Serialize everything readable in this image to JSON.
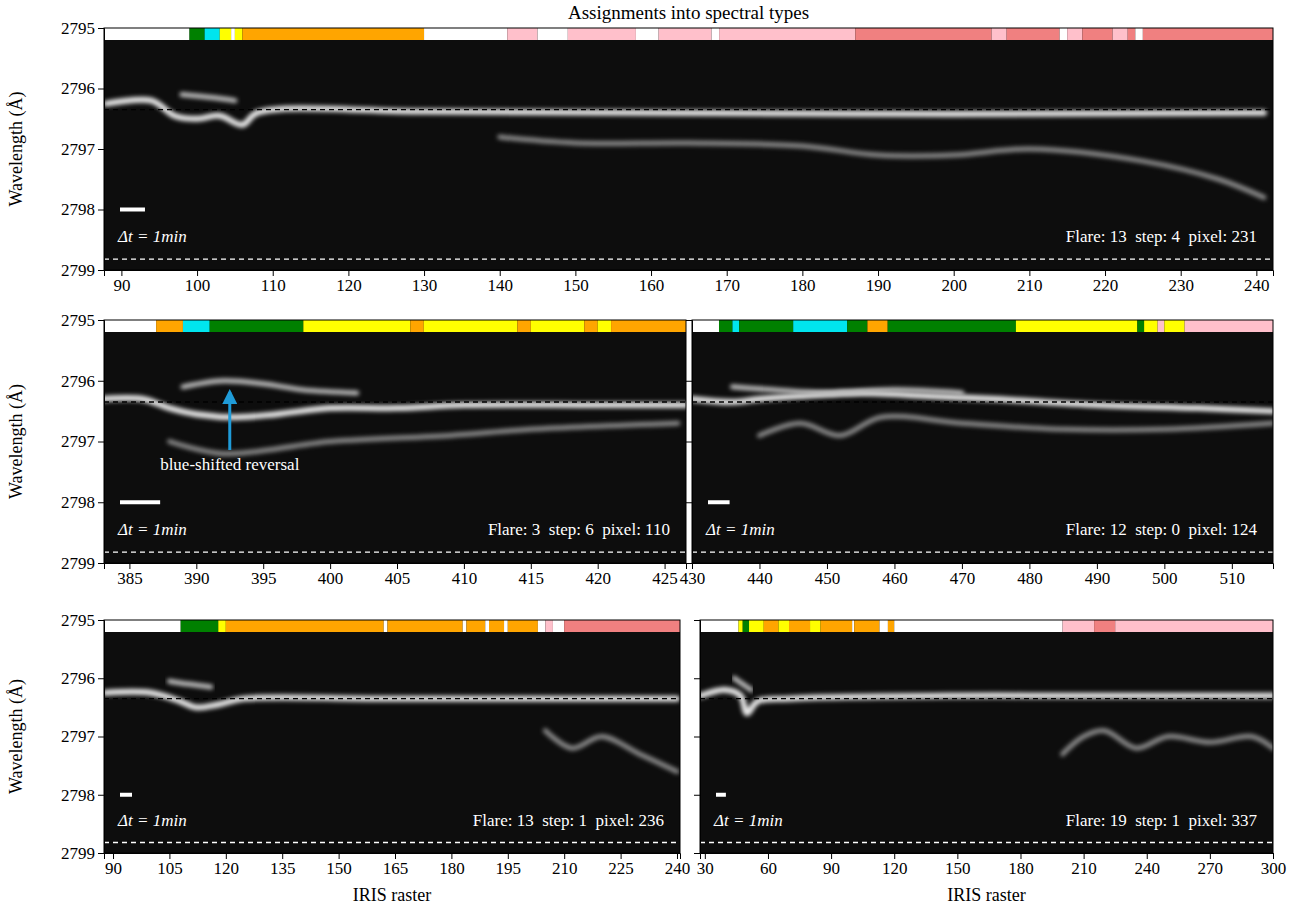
{
  "chart_data": [
    {
      "type": "line",
      "title": "Assignments into spectral types",
      "ylabel": "Wavelength (Å)",
      "xlim": [
        87.7,
        242.2
      ],
      "xticks": [
        90,
        100,
        110,
        120,
        130,
        140,
        150,
        160,
        170,
        180,
        190,
        200,
        210,
        220,
        230,
        240
      ],
      "ylim": [
        2799,
        2795
      ],
      "yticks": [
        2795,
        2796,
        2797,
        2798,
        2799
      ],
      "tick_labels": true,
      "series": [
        {
          "color": "#e8e8e8",
          "line_style": "solid",
          "x": [
            88,
            94,
            97,
            100,
            103,
            106,
            108,
            130,
            160,
            200,
            241
          ],
          "values": [
            2796.25,
            2796.2,
            2796.45,
            2796.5,
            2796.45,
            2796.6,
            2796.4,
            2796.38,
            2796.4,
            2796.42,
            2796.4
          ]
        },
        {
          "color": "#bdbdbd",
          "line_style": "solid",
          "x": [
            98,
            102,
            105
          ],
          "values": [
            2796.1,
            2796.15,
            2796.2
          ]
        },
        {
          "color": "#8a8a8a",
          "line_style": "solid",
          "x": [
            140,
            150,
            165,
            180,
            190,
            200,
            210,
            225,
            235,
            241
          ],
          "values": [
            2796.8,
            2796.9,
            2796.9,
            2796.95,
            2797.1,
            2797.1,
            2797.0,
            2797.2,
            2797.5,
            2797.8
          ]
        }
      ],
      "hlines": [
        {
          "value": 2796.35,
          "color": "#000000",
          "line_style": "dashed"
        },
        {
          "value": 2798.82,
          "color": "#ffffff",
          "line_style": "dashed"
        }
      ],
      "segments": [
        {
          "start": 87.7,
          "end": 99,
          "color": "#ffffff"
        },
        {
          "start": 99,
          "end": 101,
          "color": "#008000"
        },
        {
          "start": 101,
          "end": 103,
          "color": "#00e5ee"
        },
        {
          "start": 103,
          "end": 104.5,
          "color": "#ffff00"
        },
        {
          "start": 104.5,
          "end": 105,
          "color": "#ffffff"
        },
        {
          "start": 105,
          "end": 106,
          "color": "#ffff00"
        },
        {
          "start": 106,
          "end": 130,
          "color": "#ffa500"
        },
        {
          "start": 130,
          "end": 141,
          "color": "#ffffff"
        },
        {
          "start": 141,
          "end": 145,
          "color": "#ffc0cb"
        },
        {
          "start": 145,
          "end": 149,
          "color": "#ffffff"
        },
        {
          "start": 149,
          "end": 158,
          "color": "#ffc0cb"
        },
        {
          "start": 158,
          "end": 161,
          "color": "#ffffff"
        },
        {
          "start": 161,
          "end": 168,
          "color": "#ffc0cb"
        },
        {
          "start": 168,
          "end": 169,
          "color": "#ffffff"
        },
        {
          "start": 169,
          "end": 187,
          "color": "#ffc0cb"
        },
        {
          "start": 187,
          "end": 205,
          "color": "#f08080"
        },
        {
          "start": 205,
          "end": 207,
          "color": "#ffc0cb"
        },
        {
          "start": 207,
          "end": 214,
          "color": "#f08080"
        },
        {
          "start": 214,
          "end": 215,
          "color": "#ffffff"
        },
        {
          "start": 215,
          "end": 217,
          "color": "#ffc0cb"
        },
        {
          "start": 217,
          "end": 221,
          "color": "#f08080"
        },
        {
          "start": 221,
          "end": 223,
          "color": "#ffc0cb"
        },
        {
          "start": 223,
          "end": 224,
          "color": "#f08080"
        },
        {
          "start": 224,
          "end": 225,
          "color": "#ffffff"
        },
        {
          "start": 225,
          "end": 242.2,
          "color": "#f08080"
        }
      ],
      "scale_bar": {
        "length": 3.3,
        "label": "Δt = 1min"
      },
      "annotation": "Flare: 13  step: 4  pixel: 231"
    },
    {
      "type": "line",
      "ylabel": "Wavelength (Å)",
      "xlim": [
        383.1,
        426.6
      ],
      "xticks": [
        385,
        390,
        395,
        400,
        405,
        410,
        415,
        420,
        425
      ],
      "ylim": [
        2799,
        2795
      ],
      "yticks": [
        2795,
        2796,
        2797,
        2798,
        2799
      ],
      "tick_labels": true,
      "series": [
        {
          "color": "#e8e8e8",
          "line_style": "solid",
          "x": [
            383,
            386,
            388,
            390,
            393,
            396,
            400,
            405,
            410,
            420,
            426.6
          ],
          "values": [
            2796.3,
            2796.3,
            2796.45,
            2796.55,
            2796.6,
            2796.55,
            2796.45,
            2796.45,
            2796.4,
            2796.4,
            2796.4
          ]
        },
        {
          "color": "#bdbdbd",
          "line_style": "solid",
          "x": [
            389,
            392,
            395,
            398,
            402
          ],
          "values": [
            2796.1,
            2796.0,
            2796.05,
            2796.15,
            2796.2
          ]
        },
        {
          "color": "#8a8a8a",
          "line_style": "solid",
          "x": [
            388,
            392,
            400,
            409,
            415,
            426
          ],
          "values": [
            2797.0,
            2797.2,
            2797.0,
            2796.9,
            2796.8,
            2796.7
          ]
        }
      ],
      "hlines": [
        {
          "value": 2796.35,
          "color": "#000000",
          "line_style": "dashed"
        },
        {
          "value": 2798.82,
          "color": "#ffffff",
          "line_style": "dashed"
        }
      ],
      "segments": [
        {
          "start": 383.1,
          "end": 387,
          "color": "#ffffff"
        },
        {
          "start": 387,
          "end": 389,
          "color": "#ffa500"
        },
        {
          "start": 389,
          "end": 391,
          "color": "#00e5ee"
        },
        {
          "start": 391,
          "end": 398,
          "color": "#008000"
        },
        {
          "start": 398,
          "end": 406,
          "color": "#ffff00"
        },
        {
          "start": 406,
          "end": 407,
          "color": "#ffa500"
        },
        {
          "start": 407,
          "end": 414,
          "color": "#ffff00"
        },
        {
          "start": 414,
          "end": 415,
          "color": "#ffa500"
        },
        {
          "start": 415,
          "end": 419,
          "color": "#ffff00"
        },
        {
          "start": 419,
          "end": 420,
          "color": "#ffa500"
        },
        {
          "start": 420,
          "end": 421,
          "color": "#ffff00"
        },
        {
          "start": 421,
          "end": 426.6,
          "color": "#ffa500"
        }
      ],
      "scale_bar": {
        "length": 3,
        "label": "Δt = 1min"
      },
      "annotation": "Flare: 3  step: 6  pixel: 110",
      "arrow": {
        "text": "blue-shifted reversal",
        "x": 392.5,
        "y": 2796.12,
        "color": "#1f9bd8"
      }
    },
    {
      "type": "line",
      "xlim": [
        430,
        516.1
      ],
      "xticks": [
        430,
        440,
        450,
        460,
        470,
        480,
        490,
        500,
        510
      ],
      "ylim": [
        2799,
        2795
      ],
      "yticks": [
        2795,
        2796,
        2797,
        2798,
        2799
      ],
      "tick_labels": "x",
      "series": [
        {
          "color": "#e8e8e8",
          "line_style": "solid",
          "x": [
            430,
            436,
            440,
            446,
            455,
            465,
            475,
            490,
            505,
            516
          ],
          "values": [
            2796.3,
            2796.35,
            2796.3,
            2796.25,
            2796.2,
            2796.25,
            2796.3,
            2796.4,
            2796.45,
            2796.5
          ]
        },
        {
          "color": "#bdbdbd",
          "line_style": "solid",
          "x": [
            436,
            442,
            450,
            460,
            470
          ],
          "values": [
            2796.1,
            2796.15,
            2796.2,
            2796.15,
            2796.2
          ]
        },
        {
          "color": "#8a8a8a",
          "line_style": "solid",
          "x": [
            440,
            446,
            452,
            458,
            470,
            485,
            500,
            516
          ],
          "values": [
            2796.9,
            2796.7,
            2796.9,
            2796.6,
            2796.7,
            2796.8,
            2796.8,
            2796.7
          ]
        }
      ],
      "hlines": [
        {
          "value": 2796.35,
          "color": "#000000",
          "line_style": "dashed"
        },
        {
          "value": 2798.82,
          "color": "#ffffff",
          "line_style": "dashed"
        }
      ],
      "segments": [
        {
          "start": 430,
          "end": 434,
          "color": "#ffffff"
        },
        {
          "start": 434,
          "end": 436,
          "color": "#008000"
        },
        {
          "start": 436,
          "end": 437,
          "color": "#00e5ee"
        },
        {
          "start": 437,
          "end": 445,
          "color": "#008000"
        },
        {
          "start": 445,
          "end": 453,
          "color": "#00e5ee"
        },
        {
          "start": 453,
          "end": 456,
          "color": "#008000"
        },
        {
          "start": 456,
          "end": 459,
          "color": "#ffa500"
        },
        {
          "start": 459,
          "end": 478,
          "color": "#008000"
        },
        {
          "start": 478,
          "end": 496,
          "color": "#ffff00"
        },
        {
          "start": 496,
          "end": 497,
          "color": "#008000"
        },
        {
          "start": 497,
          "end": 499,
          "color": "#ffff00"
        },
        {
          "start": 499,
          "end": 500,
          "color": "#ffc0cb"
        },
        {
          "start": 500,
          "end": 503,
          "color": "#ffff00"
        },
        {
          "start": 503,
          "end": 516.1,
          "color": "#ffc0cb"
        }
      ],
      "scale_bar": {
        "length": 3.2,
        "label": "Δt = 1min"
      },
      "annotation": "Flare: 12  step: 0  pixel: 124"
    },
    {
      "type": "line",
      "ylabel": "Wavelength (Å)",
      "xlabel": "IRIS raster",
      "xlim": [
        87.6,
        240.8
      ],
      "xticks": [
        90,
        105,
        120,
        135,
        150,
        165,
        180,
        195,
        210,
        225,
        240
      ],
      "ylim": [
        2799,
        2795
      ],
      "yticks": [
        2795,
        2796,
        2797,
        2798,
        2799
      ],
      "tick_labels": true,
      "series": [
        {
          "color": "#e8e8e8",
          "line_style": "solid",
          "x": [
            88,
            100,
            108,
            112,
            118,
            125,
            160,
            200,
            240
          ],
          "values": [
            2796.25,
            2796.25,
            2796.4,
            2796.5,
            2796.45,
            2796.35,
            2796.35,
            2796.35,
            2796.35
          ]
        },
        {
          "color": "#bdbdbd",
          "line_style": "solid",
          "x": [
            105,
            110,
            116
          ],
          "values": [
            2796.05,
            2796.1,
            2796.15
          ]
        },
        {
          "color": "#8a8a8a",
          "line_style": "solid",
          "x": [
            205,
            212,
            220,
            230,
            240
          ],
          "values": [
            2796.9,
            2797.2,
            2797.0,
            2797.3,
            2797.6
          ]
        }
      ],
      "hlines": [
        {
          "value": 2796.35,
          "color": "#000000",
          "line_style": "dashed"
        },
        {
          "value": 2798.82,
          "color": "#ffffff",
          "line_style": "dashed"
        }
      ],
      "segments": [
        {
          "start": 87.6,
          "end": 108,
          "color": "#ffffff"
        },
        {
          "start": 108,
          "end": 118,
          "color": "#008000"
        },
        {
          "start": 118,
          "end": 120,
          "color": "#ffff00"
        },
        {
          "start": 120,
          "end": 162,
          "color": "#ffa500"
        },
        {
          "start": 162,
          "end": 163,
          "color": "#ffffff"
        },
        {
          "start": 163,
          "end": 183,
          "color": "#ffa500"
        },
        {
          "start": 183,
          "end": 184,
          "color": "#ffffff"
        },
        {
          "start": 184,
          "end": 189,
          "color": "#ffa500"
        },
        {
          "start": 189,
          "end": 190,
          "color": "#ffffff"
        },
        {
          "start": 190,
          "end": 194,
          "color": "#ffa500"
        },
        {
          "start": 194,
          "end": 195,
          "color": "#ffffff"
        },
        {
          "start": 195,
          "end": 203,
          "color": "#ffa500"
        },
        {
          "start": 203,
          "end": 205,
          "color": "#ffffff"
        },
        {
          "start": 205,
          "end": 207,
          "color": "#ffc0cb"
        },
        {
          "start": 207,
          "end": 210,
          "color": "#ffffff"
        },
        {
          "start": 210,
          "end": 240.8,
          "color": "#f08080"
        }
      ],
      "scale_bar": {
        "length": 3.2,
        "label": "Δt = 1min"
      },
      "annotation": "Flare: 13  step: 1  pixel: 236"
    },
    {
      "type": "line",
      "xlabel": "IRIS raster",
      "xlim": [
        27.7,
        300
      ],
      "xticks": [
        30,
        60,
        90,
        120,
        150,
        180,
        210,
        240,
        270,
        300
      ],
      "ylim": [
        2799,
        2795
      ],
      "yticks": [
        2795,
        2796,
        2797,
        2798,
        2799
      ],
      "tick_labels": "x",
      "series": [
        {
          "color": "#e8e8e8",
          "line_style": "solid",
          "x": [
            28,
            40,
            47,
            50,
            55,
            70,
            150,
            200,
            250,
            300
          ],
          "values": [
            2796.3,
            2796.2,
            2796.3,
            2796.6,
            2796.4,
            2796.35,
            2796.3,
            2796.3,
            2796.3,
            2796.3
          ]
        },
        {
          "color": "#bdbdbd",
          "line_style": "solid",
          "x": [
            44,
            48,
            52
          ],
          "values": [
            2796.0,
            2796.1,
            2796.2
          ]
        },
        {
          "color": "#8a8a8a",
          "line_style": "solid",
          "x": [
            200,
            210,
            220,
            235,
            250,
            270,
            290,
            300
          ],
          "values": [
            2797.3,
            2797.0,
            2796.9,
            2797.2,
            2797.0,
            2797.1,
            2797.0,
            2797.2
          ]
        }
      ],
      "hlines": [
        {
          "value": 2796.35,
          "color": "#000000",
          "line_style": "dashed"
        },
        {
          "value": 2798.82,
          "color": "#ffffff",
          "line_style": "dashed"
        }
      ],
      "segments": [
        {
          "start": 27.7,
          "end": 46,
          "color": "#ffffff"
        },
        {
          "start": 46,
          "end": 48,
          "color": "#ffff00"
        },
        {
          "start": 48,
          "end": 51,
          "color": "#008000"
        },
        {
          "start": 51,
          "end": 58,
          "color": "#ffff00"
        },
        {
          "start": 58,
          "end": 65,
          "color": "#ffa500"
        },
        {
          "start": 65,
          "end": 70,
          "color": "#ffff00"
        },
        {
          "start": 70,
          "end": 80,
          "color": "#ffa500"
        },
        {
          "start": 80,
          "end": 85,
          "color": "#ffff00"
        },
        {
          "start": 85,
          "end": 100,
          "color": "#ffa500"
        },
        {
          "start": 100,
          "end": 101,
          "color": "#ffffff"
        },
        {
          "start": 101,
          "end": 113,
          "color": "#ffa500"
        },
        {
          "start": 113,
          "end": 117,
          "color": "#ffffff"
        },
        {
          "start": 117,
          "end": 120,
          "color": "#ffa500"
        },
        {
          "start": 120,
          "end": 200,
          "color": "#ffffff"
        },
        {
          "start": 200,
          "end": 215,
          "color": "#ffc0cb"
        },
        {
          "start": 215,
          "end": 225,
          "color": "#f08080"
        },
        {
          "start": 225,
          "end": 300,
          "color": "#ffc0cb"
        }
      ],
      "scale_bar": {
        "length": 4.7,
        "label": "Δt = 1min"
      },
      "annotation": "Flare: 19  step: 1  pixel: 337"
    }
  ]
}
